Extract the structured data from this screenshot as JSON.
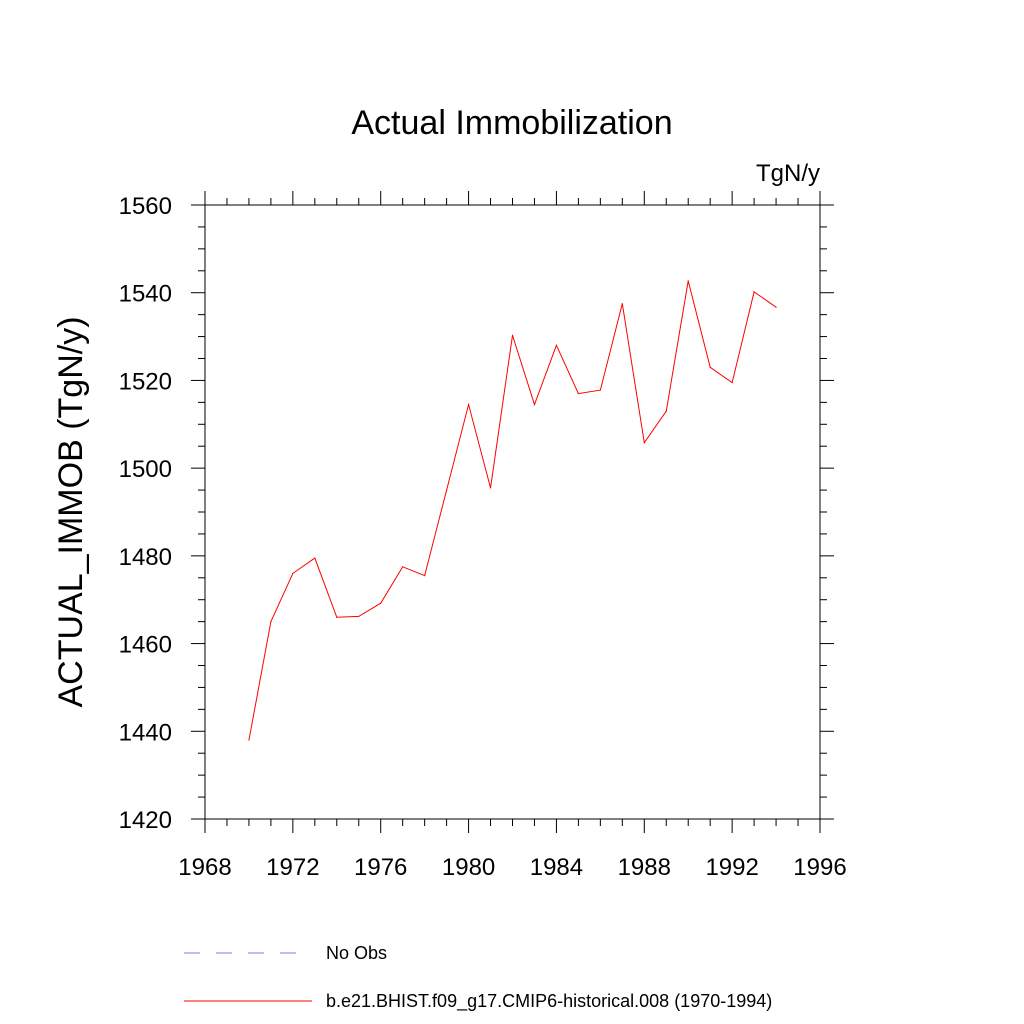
{
  "chart_data": {
    "type": "line",
    "title": "Actual Immobilization",
    "units_label": "TgN/y",
    "ylabel": "ACTUAL_IMMOB  (TgN/y)",
    "xlabel": "",
    "xlim": [
      1968,
      1996
    ],
    "ylim": [
      1420,
      1560
    ],
    "x_ticks": [
      1968,
      1972,
      1976,
      1980,
      1984,
      1988,
      1992,
      1996
    ],
    "y_ticks": [
      1420,
      1440,
      1460,
      1480,
      1500,
      1520,
      1540,
      1560
    ],
    "grid": false,
    "legend_position": "bottom",
    "x": [
      1970,
      1971,
      1972,
      1973,
      1974,
      1975,
      1976,
      1977,
      1978,
      1979,
      1980,
      1981,
      1982,
      1983,
      1984,
      1985,
      1986,
      1987,
      1988,
      1989,
      1990,
      1991,
      1992,
      1993,
      1994
    ],
    "series": [
      {
        "name": "b.e21.BHIST.f09_g17.CMIP6-historical.008 (1970-1994)",
        "color": "#ff0000",
        "style": "solid",
        "values": [
          1438,
          1465,
          1476,
          1479.5,
          1466,
          1466.2,
          1469.2,
          1477.5,
          1475.5,
          1495,
          1514.5,
          1495.5,
          1530.3,
          1514.5,
          1528,
          1517,
          1517.8,
          1537.5,
          1505.8,
          1513,
          1542.7,
          1523,
          1519.5,
          1540.2,
          1536.7
        ]
      }
    ],
    "legend": [
      {
        "label": "No Obs",
        "color": "#7f7fbf",
        "style": "dashed"
      },
      {
        "label": "b.e21.BHIST.f09_g17.CMIP6-historical.008 (1970-1994)",
        "color": "#ff0000",
        "style": "solid"
      }
    ]
  }
}
